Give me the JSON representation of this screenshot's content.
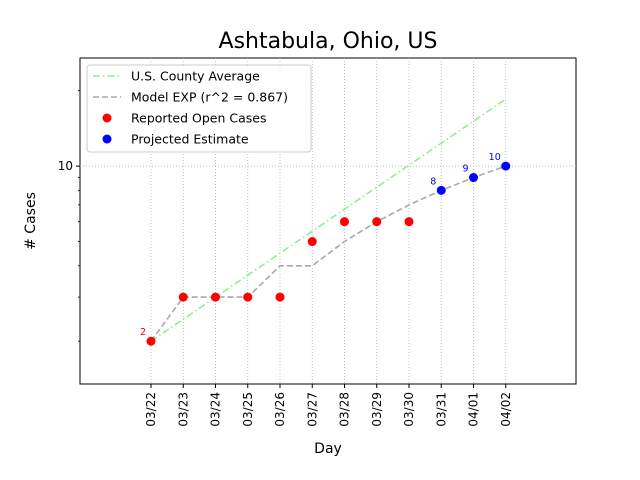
{
  "chart_data": {
    "type": "line",
    "title": "Ashtabula, Ohio, US",
    "xlabel": "Day",
    "ylabel": "# Cases",
    "y_scale": "log",
    "ylim": [
      1.35,
      27
    ],
    "y_ticks": [
      {
        "value": 10,
        "label": "10"
      }
    ],
    "grid": true,
    "legend_position": "top-left",
    "categories": [
      "03/22",
      "03/23",
      "03/24",
      "03/25",
      "03/26",
      "03/27",
      "03/28",
      "03/29",
      "03/30",
      "03/31",
      "04/01",
      "04/02"
    ],
    "series": [
      {
        "name": "U.S. County Average",
        "kind": "line",
        "style": "dashdot",
        "color": "#90ee90",
        "x": [
          "03/22",
          "04/02"
        ],
        "values": [
          2.0,
          18.5
        ]
      },
      {
        "name": "Model EXP (r^2 = 0.867)",
        "kind": "line",
        "style": "dashed",
        "color": "#a9a9a9",
        "x": [
          "03/22",
          "03/23",
          "03/24",
          "03/25",
          "03/26",
          "03/27",
          "03/28",
          "03/29",
          "03/30",
          "03/31",
          "04/01",
          "04/02"
        ],
        "values": [
          2,
          3,
          3,
          3,
          4,
          4,
          5,
          6,
          7,
          8,
          9,
          10
        ]
      },
      {
        "name": "Reported Open Cases",
        "kind": "scatter",
        "color": "#ff0000",
        "x": [
          "03/22",
          "03/23",
          "03/24",
          "03/25",
          "03/26",
          "03/27",
          "03/28",
          "03/29",
          "03/30"
        ],
        "values": [
          2,
          3,
          3,
          3,
          3,
          5,
          6,
          6,
          6
        ]
      },
      {
        "name": "Projected Estimate",
        "kind": "scatter",
        "color": "#0000ff",
        "x": [
          "03/31",
          "04/01",
          "04/02"
        ],
        "values": [
          8,
          9,
          10
        ]
      }
    ],
    "annotations": [
      {
        "x": "03/22",
        "value": 2,
        "text": "2",
        "color": "#ff0000"
      },
      {
        "x": "03/31",
        "value": 8,
        "text": "8",
        "color": "#0000ff"
      },
      {
        "x": "04/01",
        "value": 9,
        "text": "9",
        "color": "#0000ff"
      },
      {
        "x": "04/02",
        "value": 10,
        "text": "10",
        "color": "#0000ff"
      }
    ]
  }
}
